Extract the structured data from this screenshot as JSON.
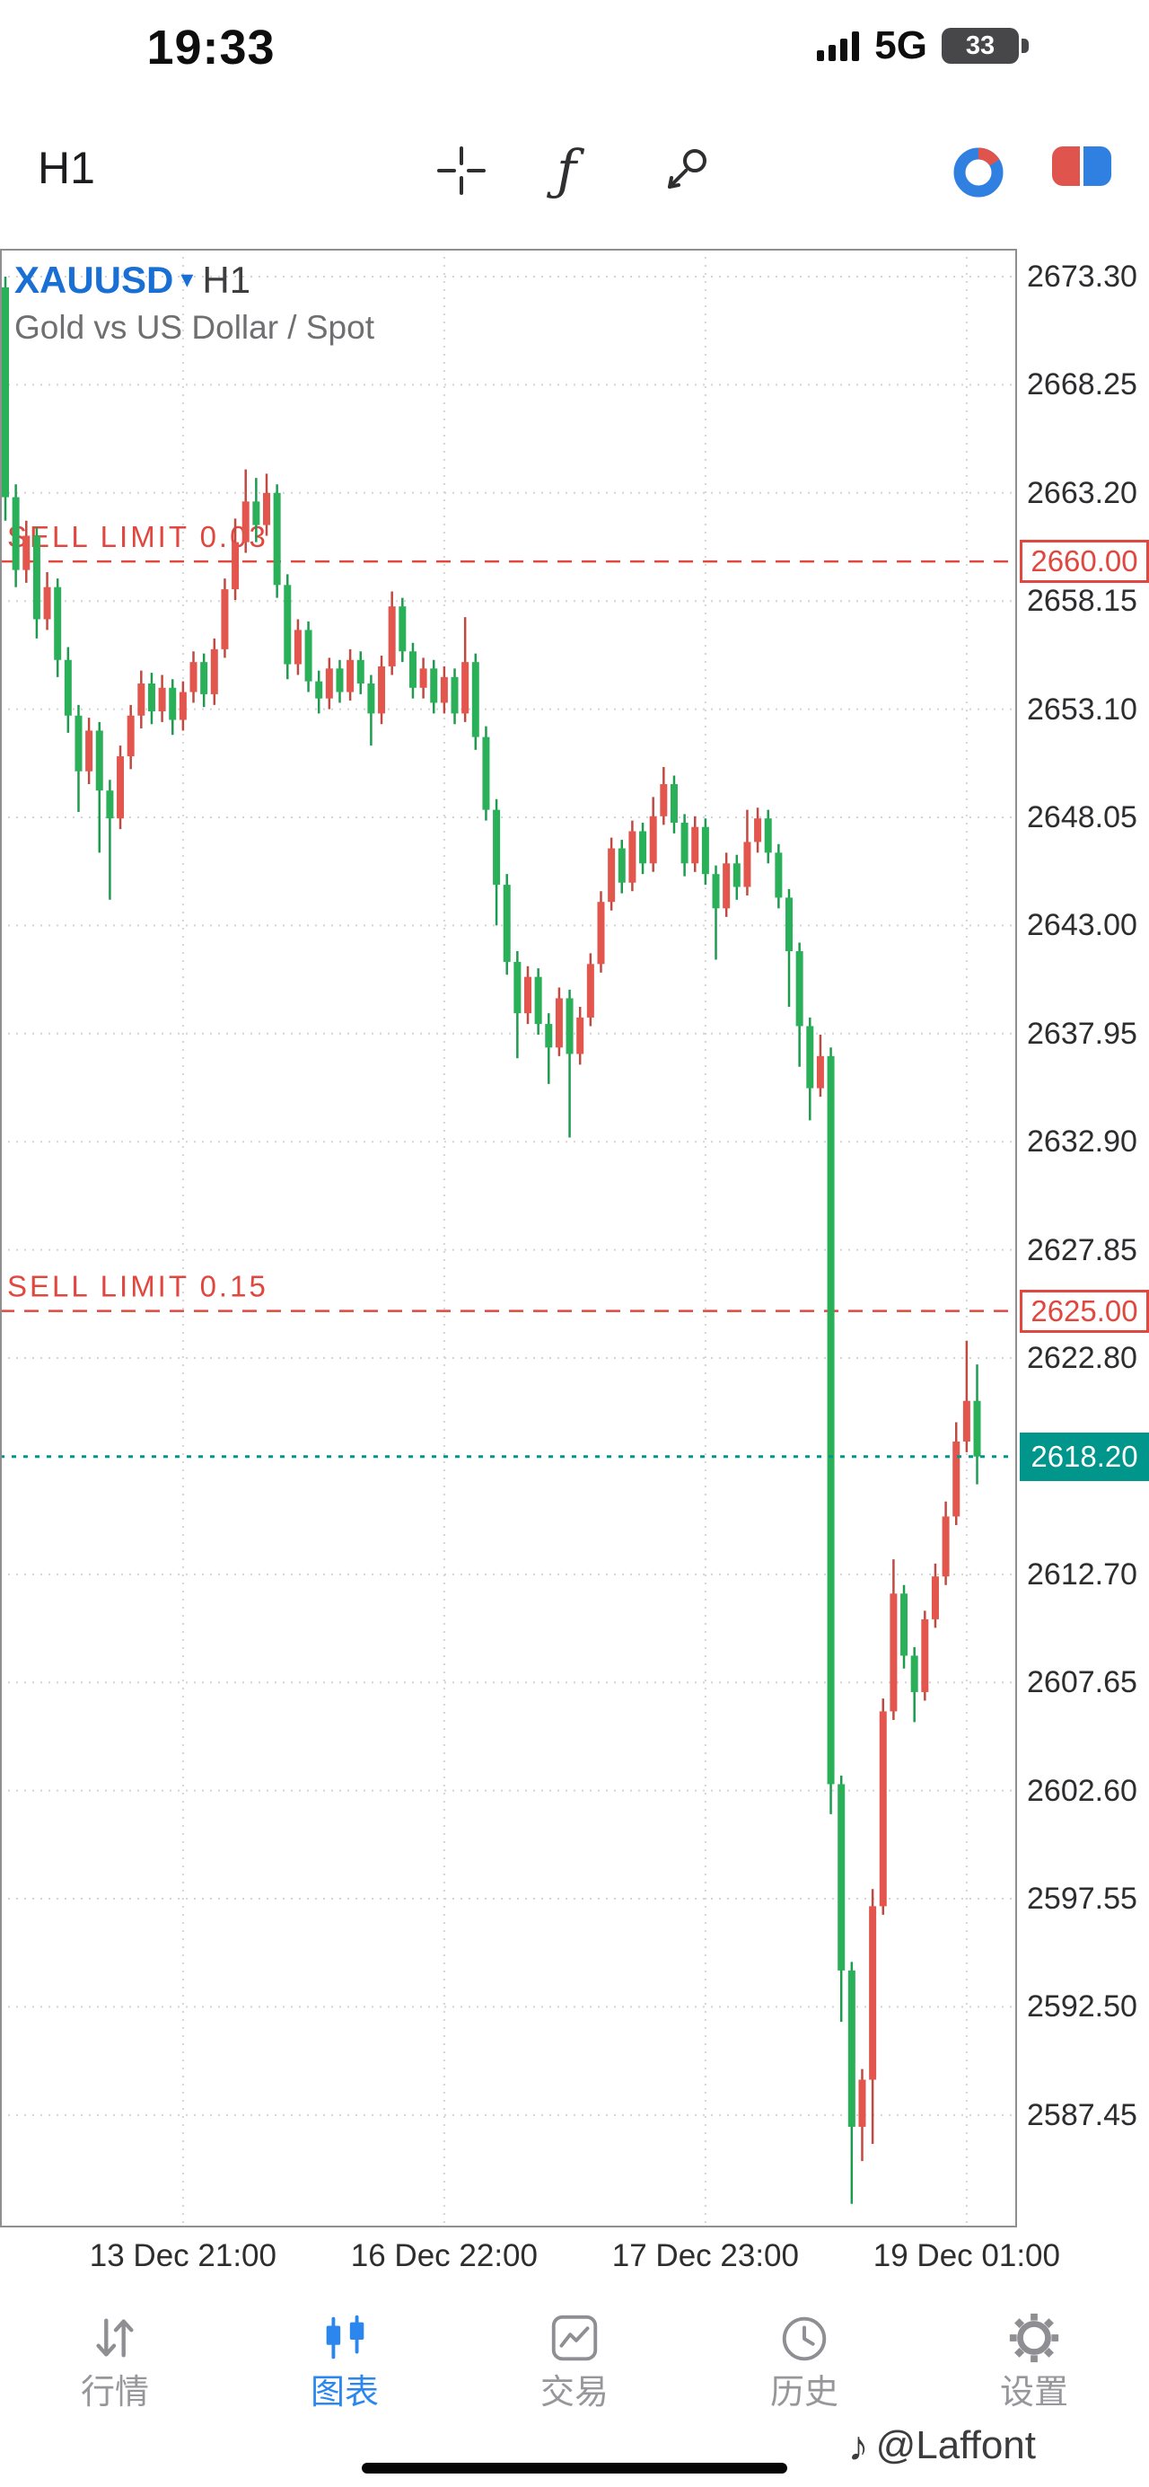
{
  "status_bar": {
    "time": "19:33",
    "network": "5G",
    "battery_percent": "33"
  },
  "toolbar": {
    "timeframe": "H1"
  },
  "icons": {
    "fx": "ƒ",
    "caret": "▾",
    "watermark_note": "♪"
  },
  "chart": {
    "symbol": "XAUUSD",
    "timeframe": "H1",
    "description": "Gold vs US Dollar / Spot"
  },
  "chart_data": {
    "type": "candlestick",
    "symbol": "XAUUSD",
    "timeframe": "H1",
    "axis": {
      "top": 2674.6,
      "bottom": 2582.2
    },
    "price_ticks": [
      "2673.30",
      "2668.25",
      "2663.20",
      "2658.15",
      "2653.10",
      "2648.05",
      "2643.00",
      "2637.95",
      "2632.90",
      "2627.85",
      "2622.80",
      "2612.70",
      "2607.65",
      "2602.60",
      "2597.55",
      "2592.50",
      "2587.45"
    ],
    "time_ticks": [
      {
        "label": "13 Dec 21:00",
        "index": 17
      },
      {
        "label": "16 Dec 22:00",
        "index": 42
      },
      {
        "label": "17 Dec 23:00",
        "index": 67
      },
      {
        "label": "19 Dec 01:00",
        "index": 92
      }
    ],
    "orders": [
      {
        "label": "SELL LIMIT 0.03",
        "price": 2660.0,
        "badge": "2660.00"
      },
      {
        "label": "SELL LIMIT 0.15",
        "price": 2625.0,
        "badge": "2625.00"
      }
    ],
    "current_price": {
      "value": 2618.2,
      "badge": "2618.20"
    },
    "colors": {
      "bullish": "#e2564d",
      "bullish_wick": "#c04a42",
      "bearish": "#2bb05a",
      "bearish_wick": "#1f9b4f",
      "order": "#e0473f",
      "current": "#00968b",
      "grid": "#d4d4d4",
      "border": "#8f8f8f"
    },
    "candles": [
      [
        2672.8,
        2673.3,
        2661.9,
        2663.0
      ],
      [
        2663.0,
        2663.6,
        2658.8,
        2659.6
      ],
      [
        2659.6,
        2661.9,
        2659.0,
        2661.2
      ],
      [
        2661.2,
        2661.6,
        2656.4,
        2657.3
      ],
      [
        2657.3,
        2659.5,
        2656.8,
        2658.8
      ],
      [
        2658.8,
        2659.2,
        2654.6,
        2655.4
      ],
      [
        2655.4,
        2656.0,
        2652.0,
        2652.8
      ],
      [
        2652.8,
        2653.3,
        2648.3,
        2650.2
      ],
      [
        2650.2,
        2652.7,
        2649.6,
        2652.1
      ],
      [
        2652.1,
        2652.5,
        2646.4,
        2649.3
      ],
      [
        2649.3,
        2649.8,
        2644.2,
        2648.0
      ],
      [
        2648.0,
        2651.4,
        2647.5,
        2650.9
      ],
      [
        2650.9,
        2653.3,
        2650.3,
        2652.8
      ],
      [
        2652.8,
        2654.9,
        2652.2,
        2654.3
      ],
      [
        2654.3,
        2654.8,
        2652.4,
        2653.0
      ],
      [
        2653.0,
        2654.7,
        2652.5,
        2654.1
      ],
      [
        2654.1,
        2654.5,
        2651.9,
        2652.6
      ],
      [
        2652.6,
        2654.4,
        2652.1,
        2653.9
      ],
      [
        2653.9,
        2655.8,
        2653.4,
        2655.3
      ],
      [
        2655.3,
        2655.7,
        2653.2,
        2653.8
      ],
      [
        2653.8,
        2656.4,
        2653.3,
        2655.9
      ],
      [
        2655.9,
        2659.2,
        2655.5,
        2658.7
      ],
      [
        2658.7,
        2662.0,
        2658.2,
        2660.9
      ],
      [
        2660.9,
        2664.3,
        2660.4,
        2662.8
      ],
      [
        2662.8,
        2663.9,
        2660.9,
        2661.7
      ],
      [
        2661.7,
        2664.1,
        2661.2,
        2663.2
      ],
      [
        2663.2,
        2663.6,
        2658.3,
        2658.9
      ],
      [
        2658.9,
        2659.4,
        2654.5,
        2655.2
      ],
      [
        2655.2,
        2657.3,
        2654.7,
        2656.8
      ],
      [
        2656.8,
        2657.2,
        2653.9,
        2654.4
      ],
      [
        2654.4,
        2654.9,
        2652.9,
        2653.6
      ],
      [
        2653.6,
        2655.5,
        2653.1,
        2655.0
      ],
      [
        2655.0,
        2655.4,
        2653.4,
        2653.9
      ],
      [
        2653.9,
        2655.9,
        2653.5,
        2655.4
      ],
      [
        2655.4,
        2655.8,
        2653.8,
        2654.3
      ],
      [
        2654.3,
        2654.7,
        2651.4,
        2652.9
      ],
      [
        2652.9,
        2655.6,
        2652.4,
        2655.1
      ],
      [
        2655.1,
        2658.6,
        2654.7,
        2657.9
      ],
      [
        2657.9,
        2658.3,
        2655.3,
        2655.8
      ],
      [
        2655.8,
        2656.2,
        2653.6,
        2654.1
      ],
      [
        2654.1,
        2655.5,
        2653.6,
        2655.0
      ],
      [
        2655.0,
        2655.4,
        2652.9,
        2653.4
      ],
      [
        2653.4,
        2655.1,
        2652.9,
        2654.6
      ],
      [
        2654.6,
        2655.0,
        2652.4,
        2652.9
      ],
      [
        2652.9,
        2657.4,
        2652.5,
        2655.3
      ],
      [
        2655.3,
        2655.7,
        2651.2,
        2651.8
      ],
      [
        2651.8,
        2652.3,
        2647.9,
        2648.4
      ],
      [
        2648.4,
        2648.9,
        2643.0,
        2644.9
      ],
      [
        2644.9,
        2645.4,
        2640.7,
        2641.3
      ],
      [
        2641.3,
        2641.8,
        2636.8,
        2638.9
      ],
      [
        2638.9,
        2641.1,
        2638.4,
        2640.6
      ],
      [
        2640.6,
        2641.0,
        2637.9,
        2638.4
      ],
      [
        2638.4,
        2638.9,
        2635.6,
        2637.3
      ],
      [
        2637.3,
        2640.1,
        2636.9,
        2639.6
      ],
      [
        2639.6,
        2640.0,
        2633.1,
        2637.0
      ],
      [
        2637.0,
        2639.2,
        2636.5,
        2638.7
      ],
      [
        2638.7,
        2641.7,
        2638.3,
        2641.2
      ],
      [
        2641.2,
        2644.6,
        2640.8,
        2644.1
      ],
      [
        2644.1,
        2647.1,
        2643.7,
        2646.6
      ],
      [
        2646.6,
        2647.0,
        2644.5,
        2645.0
      ],
      [
        2645.0,
        2647.9,
        2644.6,
        2647.4
      ],
      [
        2647.4,
        2647.8,
        2645.4,
        2645.9
      ],
      [
        2645.9,
        2649.0,
        2645.5,
        2648.1
      ],
      [
        2648.1,
        2650.4,
        2647.7,
        2649.6
      ],
      [
        2649.6,
        2650.0,
        2647.3,
        2647.8
      ],
      [
        2647.8,
        2648.2,
        2645.3,
        2645.9
      ],
      [
        2645.9,
        2648.1,
        2645.5,
        2647.6
      ],
      [
        2647.6,
        2648.0,
        2644.9,
        2645.4
      ],
      [
        2645.4,
        2645.8,
        2641.4,
        2643.8
      ],
      [
        2643.8,
        2646.4,
        2643.4,
        2645.9
      ],
      [
        2645.9,
        2646.3,
        2644.2,
        2644.8
      ],
      [
        2644.8,
        2648.4,
        2644.4,
        2646.9
      ],
      [
        2646.9,
        2648.5,
        2646.4,
        2648.0
      ],
      [
        2648.0,
        2648.4,
        2645.9,
        2646.4
      ],
      [
        2646.4,
        2646.8,
        2643.8,
        2644.3
      ],
      [
        2644.3,
        2644.7,
        2639.2,
        2641.8
      ],
      [
        2641.8,
        2642.2,
        2636.4,
        2638.3
      ],
      [
        2638.3,
        2638.7,
        2633.9,
        2635.4
      ],
      [
        2635.4,
        2637.9,
        2635.0,
        2636.9
      ],
      [
        2636.9,
        2637.3,
        2601.5,
        2602.9
      ],
      [
        2602.9,
        2603.3,
        2591.8,
        2594.2
      ],
      [
        2594.2,
        2594.6,
        2583.3,
        2586.9
      ],
      [
        2586.9,
        2589.6,
        2585.3,
        2589.1
      ],
      [
        2589.1,
        2598.0,
        2586.1,
        2597.2
      ],
      [
        2597.2,
        2606.9,
        2596.8,
        2606.3
      ],
      [
        2606.3,
        2613.4,
        2605.9,
        2611.8
      ],
      [
        2611.8,
        2612.2,
        2608.3,
        2608.9
      ],
      [
        2608.9,
        2609.3,
        2605.8,
        2607.2
      ],
      [
        2607.2,
        2611.0,
        2606.8,
        2610.6
      ],
      [
        2610.6,
        2613.2,
        2610.2,
        2612.6
      ],
      [
        2612.6,
        2616.1,
        2612.2,
        2615.4
      ],
      [
        2615.4,
        2619.8,
        2615.0,
        2618.9
      ],
      [
        2618.9,
        2623.6,
        2618.4,
        2620.8
      ],
      [
        2620.8,
        2622.5,
        2616.9,
        2618.2
      ]
    ]
  },
  "nav": {
    "active_index": 1,
    "items": [
      {
        "label": "行情"
      },
      {
        "label": "图表"
      },
      {
        "label": "交易"
      },
      {
        "label": "历史"
      },
      {
        "label": "设置"
      }
    ]
  },
  "watermark": {
    "text": "@Laffont"
  }
}
